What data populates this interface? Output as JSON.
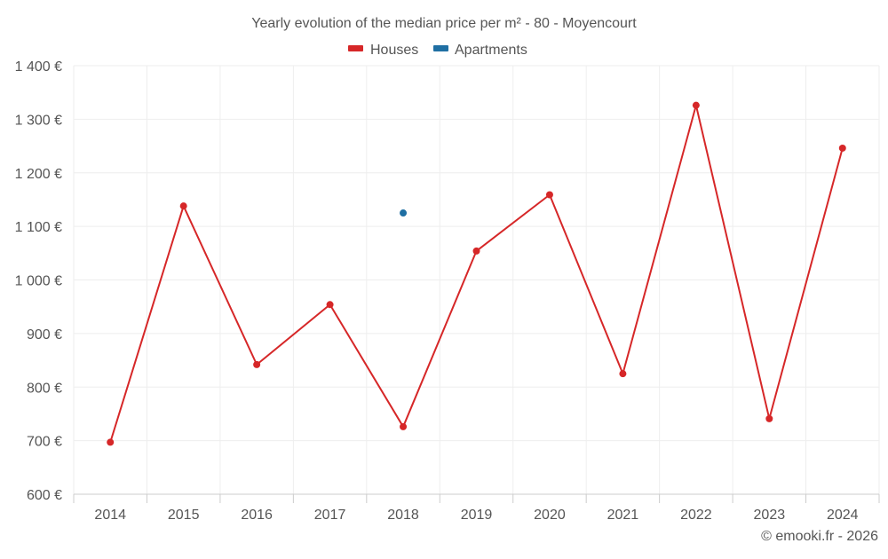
{
  "chart_data": {
    "type": "line",
    "title": "Yearly evolution of the median price per m² - 80 - Moyencourt",
    "xlabel": "",
    "ylabel": "",
    "categories": [
      "2014",
      "2015",
      "2016",
      "2017",
      "2018",
      "2019",
      "2020",
      "2021",
      "2022",
      "2023",
      "2024"
    ],
    "y_ticks": [
      "600 €",
      "700 €",
      "800 €",
      "900 €",
      "1 000 €",
      "1 100 €",
      "1 200 €",
      "1 300 €",
      "1 400 €"
    ],
    "y_tick_values": [
      600,
      700,
      800,
      900,
      1000,
      1100,
      1200,
      1300,
      1400
    ],
    "ylim": [
      600,
      1400
    ],
    "grid": true,
    "legend": "top-center",
    "series": [
      {
        "name": "Houses",
        "color": "#d62728",
        "values": [
          697,
          1138,
          842,
          954,
          726,
          1054,
          1159,
          825,
          1326,
          741,
          1246
        ]
      },
      {
        "name": "Apartments",
        "color": "#1f6fa3",
        "values": [
          null,
          null,
          null,
          null,
          1125,
          null,
          null,
          null,
          null,
          null,
          null
        ]
      }
    ],
    "credit": "© emooki.fr - 2026"
  }
}
